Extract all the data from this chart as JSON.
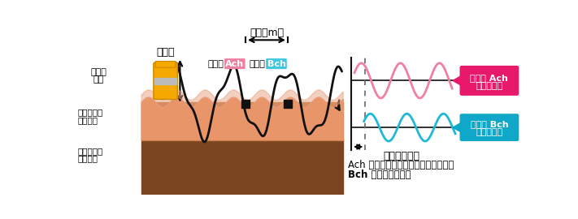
{
  "bg_color": "#ffffff",
  "soil_top_color": "#e8956a",
  "soil_mid_color": "#c07840",
  "soil_deep_color": "#7a4520",
  "wave_color": "#111111",
  "vibrator_body_color": "#f5a800",
  "vibrator_band_color": "#bbbbbb",
  "detector_color": "#111111",
  "ach_badge_color": "#f080a0",
  "bch_badge_color": "#40c8e0",
  "ach_wave_color": "#f080a0",
  "bch_wave_color": "#20b8d8",
  "ach_box_color": "#e8186a",
  "bch_box_color": "#10a8c8",
  "axis_color": "#111111",
  "dashed_color": "#666666",
  "label_kishinki": "起振機",
  "label_joge": "上下に",
  "label_shindo": "震動",
  "label_high1": "高い周波数",
  "label_high2": "の表面波",
  "label_low1": "低い周波数",
  "label_low2": "の表面波",
  "label_kyori": "距離（m）",
  "label_Ach_det": "検出機",
  "label_Bch_det": "検出機",
  "label_jikansa": "時間差（秒）",
  "label_ach_box1": "検出機 Ach",
  "label_ach_box2": "測定データ",
  "label_bch_box1": "検出機 Bch",
  "label_bch_box2": "測定データ",
  "caption1": "Ach に伝わった表面波は、少し遅れて",
  "caption2": "Bch に伝わります。"
}
